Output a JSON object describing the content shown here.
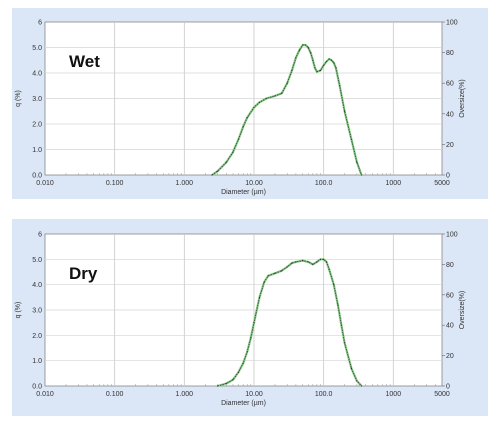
{
  "chart_data": [
    {
      "type": "line",
      "title": "Wet",
      "xlabel": "Diameter (µm)",
      "ylabel": "q (%)",
      "y2label": "Oversize(%)",
      "xscale": "log",
      "xlim": [
        0.01,
        5000
      ],
      "ylim": [
        0,
        6
      ],
      "y2lim": [
        0,
        100
      ],
      "x_ticks": [
        "0.010",
        "0.100",
        "1.000",
        "10.00",
        "100.0",
        "1000",
        "5000"
      ],
      "y_ticks": [
        "0.0",
        "1.0",
        "2.0",
        "3.0",
        "4.0",
        "5.0",
        "6"
      ],
      "y2_ticks": [
        "0",
        "20",
        "40",
        "60",
        "80",
        "100"
      ],
      "grid": true,
      "series": [
        {
          "color": "#7ec87e",
          "x": [
            2.5,
            3,
            4,
            5,
            6,
            7,
            8,
            10,
            12,
            15,
            20,
            25,
            30,
            35,
            40,
            45,
            50,
            55,
            60,
            65,
            70,
            75,
            80,
            90,
            100,
            110,
            120,
            130,
            140,
            150,
            170,
            200,
            250,
            300,
            350
          ],
          "y": [
            0.0,
            0.15,
            0.5,
            0.9,
            1.4,
            1.9,
            2.25,
            2.65,
            2.85,
            3.0,
            3.1,
            3.2,
            3.6,
            4.1,
            4.6,
            4.9,
            5.1,
            5.1,
            5.0,
            4.8,
            4.5,
            4.2,
            4.05,
            4.1,
            4.3,
            4.45,
            4.55,
            4.5,
            4.4,
            4.2,
            3.5,
            2.5,
            1.4,
            0.5,
            0.0
          ]
        }
      ]
    },
    {
      "type": "line",
      "title": "Dry",
      "xlabel": "Diameter (µm)",
      "ylabel": "q (%)",
      "y2label": "Oversize(%)",
      "xscale": "log",
      "xlim": [
        0.01,
        5000
      ],
      "ylim": [
        0,
        6
      ],
      "y2lim": [
        0,
        100
      ],
      "x_ticks": [
        "0.010",
        "0.100",
        "1.000",
        "10.00",
        "100.0",
        "1000",
        "5000"
      ],
      "y_ticks": [
        "0.0",
        "1.0",
        "2.0",
        "3.0",
        "4.0",
        "5.0",
        "6"
      ],
      "y2_ticks": [
        "0",
        "20",
        "40",
        "60",
        "80",
        "100"
      ],
      "grid": true,
      "series": [
        {
          "color": "#7ec87e",
          "x": [
            3,
            4,
            5,
            6,
            7,
            8,
            9,
            10,
            12,
            14,
            16,
            20,
            25,
            30,
            35,
            40,
            50,
            60,
            70,
            80,
            90,
            100,
            110,
            120,
            140,
            160,
            180,
            200,
            250,
            300,
            350
          ],
          "y": [
            0.0,
            0.1,
            0.25,
            0.55,
            0.9,
            1.35,
            1.9,
            2.5,
            3.5,
            4.1,
            4.35,
            4.45,
            4.55,
            4.7,
            4.85,
            4.9,
            4.95,
            4.9,
            4.8,
            4.9,
            5.0,
            5.0,
            4.9,
            4.6,
            4.0,
            3.2,
            2.4,
            1.7,
            0.7,
            0.2,
            0.0
          ]
        }
      ]
    }
  ]
}
